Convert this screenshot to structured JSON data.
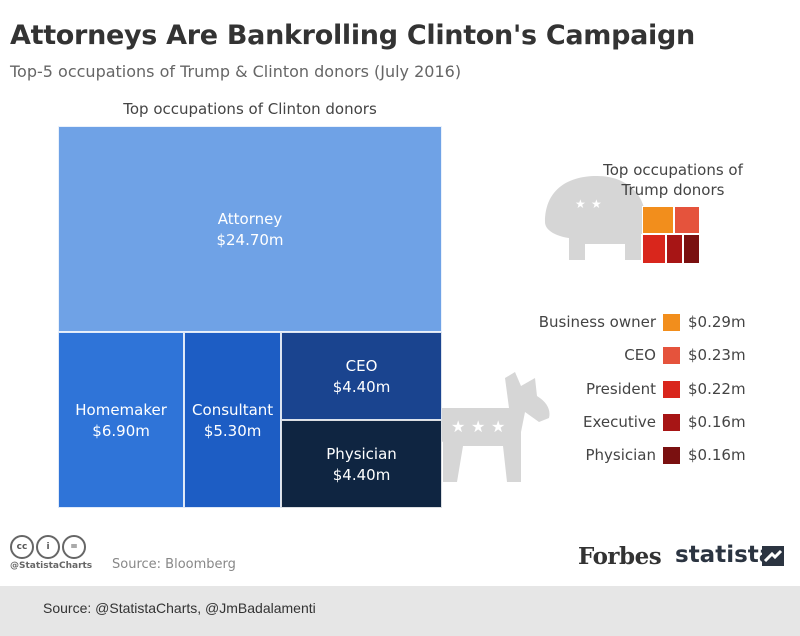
{
  "title": "Attorneys Are Bankrolling Clinton's Campaign",
  "subtitle": "Top-5 occupations of Trump & Clinton donors (July 2016)",
  "chart_data": [
    {
      "type": "treemap",
      "title": "Top occupations of Clinton donors",
      "unit": "$m",
      "items": [
        {
          "name": "Attorney",
          "value": 24.7,
          "label": "$24.70m",
          "color": "#6fa2e6"
        },
        {
          "name": "Homemaker",
          "value": 6.9,
          "label": "$6.90m",
          "color": "#2f74d8"
        },
        {
          "name": "Consultant",
          "value": 5.3,
          "label": "$5.30m",
          "color": "#1d5dc4"
        },
        {
          "name": "CEO",
          "value": 4.4,
          "label": "$4.40m",
          "color": "#1a448f"
        },
        {
          "name": "Physician",
          "value": 4.4,
          "label": "$4.40m",
          "color": "#0f2541"
        }
      ]
    },
    {
      "type": "treemap",
      "title": "Top occupations of Trump donors",
      "unit": "$m",
      "items": [
        {
          "name": "Business owner",
          "value": 0.29,
          "label": "$0.29m",
          "color": "#f28e1c"
        },
        {
          "name": "CEO",
          "value": 0.23,
          "label": "$0.23m",
          "color": "#e5533c"
        },
        {
          "name": "President",
          "value": 0.22,
          "label": "$0.22m",
          "color": "#d9261c"
        },
        {
          "name": "Executive",
          "value": 0.16,
          "label": "$0.16m",
          "color": "#a71515"
        },
        {
          "name": "Physician",
          "value": 0.16,
          "label": "$0.16m",
          "color": "#7a1010"
        }
      ]
    }
  ],
  "footer": {
    "source": "Source: Bloomberg",
    "handle": "@StatistaCharts",
    "brand_forbes": "Forbes",
    "brand_statista": "statista",
    "credits": "Source: @StatistaCharts, @JmBadalamenti"
  },
  "icons": [
    "elephant-icon",
    "donkey-icon",
    "cc-icon",
    "attribution-icon",
    "no-derivatives-icon",
    "statista-logo-icon"
  ]
}
